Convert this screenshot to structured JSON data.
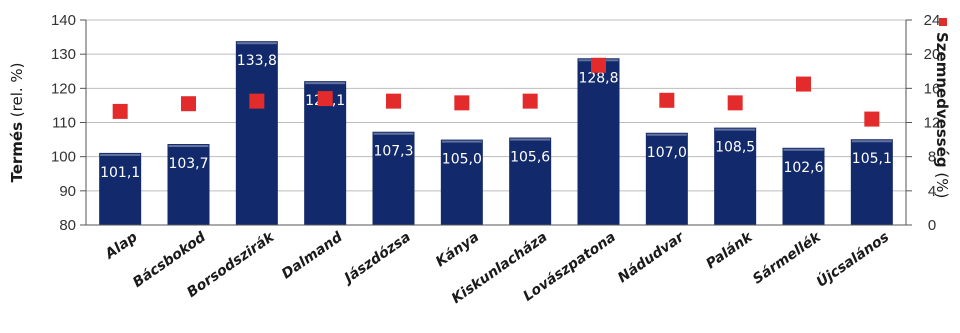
{
  "chart_data": {
    "type": "bar",
    "categories": [
      "Alap",
      "Bácsbokod",
      "Borsodszirák",
      "Dalmand",
      "Jászdózsa",
      "Kánya",
      "Kiskunlacháza",
      "Lovászpatona",
      "Nádudvar",
      "Palánk",
      "Sármellék",
      "Újcsalános"
    ],
    "series": [
      {
        "name": "Termés",
        "axis": "left",
        "values": [
          101.1,
          103.7,
          133.8,
          122.1,
          107.3,
          105.0,
          105.6,
          128.8,
          107.0,
          108.5,
          102.6,
          105.1
        ],
        "value_labels": [
          "101,1",
          "103,7",
          "133,8",
          "122,1",
          "107,3",
          "105,0",
          "105,6",
          "128,8",
          "107,0",
          "108,5",
          "102,6",
          "105,1"
        ],
        "color": "#122a6b"
      },
      {
        "name": "Szemnedvesség",
        "axis": "right",
        "marker": "square",
        "values": [
          13.3,
          14.2,
          14.5,
          14.8,
          14.5,
          14.3,
          14.5,
          18.7,
          14.6,
          14.3,
          16.5,
          12.4
        ],
        "color": "#e32b2b"
      }
    ],
    "ylabel_left": {
      "bold": "Termés",
      "rest": "(rel. %)"
    },
    "ylabel_right": {
      "bold": "Szemnedvesség",
      "rest": "(%)"
    },
    "ylim_left": [
      80,
      140
    ],
    "yticks_left": [
      80,
      90,
      100,
      110,
      120,
      130,
      140
    ],
    "ylim_right": [
      0,
      24
    ],
    "yticks_right": [
      0,
      4,
      8,
      12,
      16,
      20,
      24
    ],
    "grid": true,
    "legend": "right"
  }
}
